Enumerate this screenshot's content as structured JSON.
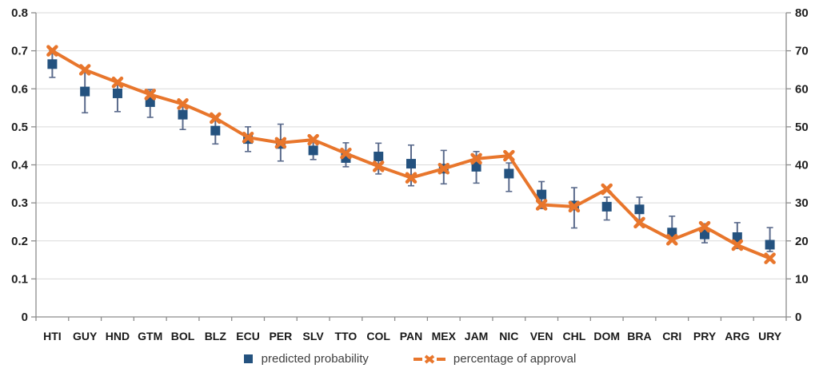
{
  "chart_data": {
    "type": "line",
    "title": "",
    "categories": [
      "HTI",
      "GUY",
      "HND",
      "GTM",
      "BOL",
      "BLZ",
      "ECU",
      "PER",
      "SLV",
      "TTO",
      "COL",
      "PAN",
      "MEX",
      "JAM",
      "NIC",
      "VEN",
      "CHL",
      "DOM",
      "BRA",
      "CRI",
      "PRY",
      "ARG",
      "URY"
    ],
    "series": [
      {
        "name": "predicted probability",
        "kind": "scatter-square-with-error-bars",
        "axis": "left",
        "color": "#24527F",
        "error_color": "#5B6B8C",
        "values": [
          0.665,
          0.593,
          0.588,
          0.565,
          0.532,
          0.49,
          0.468,
          0.455,
          0.438,
          0.418,
          0.422,
          0.403,
          0.39,
          0.395,
          0.377,
          0.322,
          0.293,
          0.29,
          0.283,
          0.222,
          0.217,
          0.21,
          0.19
        ],
        "error_low": [
          0.63,
          0.537,
          0.54,
          0.525,
          0.493,
          0.455,
          0.435,
          0.41,
          0.414,
          0.395,
          0.376,
          0.345,
          0.35,
          0.352,
          0.33,
          0.285,
          0.234,
          0.255,
          0.25,
          0.2,
          0.195,
          0.18,
          0.172
        ],
        "error_high": [
          0.7,
          0.648,
          0.61,
          0.598,
          0.563,
          0.523,
          0.5,
          0.507,
          0.462,
          0.458,
          0.457,
          0.452,
          0.438,
          0.435,
          0.405,
          0.356,
          0.34,
          0.315,
          0.315,
          0.265,
          0.245,
          0.248,
          0.235
        ]
      },
      {
        "name": "percentage of approval",
        "kind": "line-x-marker",
        "axis": "right",
        "color": "#E8762C",
        "values": [
          70,
          65,
          61.7,
          58.5,
          56,
          52.3,
          47.2,
          45.8,
          46.6,
          43,
          39.6,
          36.6,
          39,
          41.6,
          42.4,
          29.5,
          29,
          33.6,
          24.8,
          20.3,
          23.7,
          18.9,
          15.4
        ]
      }
    ],
    "left_axis": {
      "min": 0,
      "max": 0.8,
      "step": 0.1,
      "labels": [
        "0.8",
        "0.7",
        "0.6",
        "0.5",
        "0.4",
        "0.3",
        "0.2",
        "0.1",
        "0"
      ]
    },
    "right_axis": {
      "min": 0,
      "max": 80,
      "step": 10,
      "labels": [
        "80",
        "70",
        "60",
        "50",
        "40",
        "30",
        "20",
        "10",
        "0"
      ]
    },
    "gridlines": true,
    "legend_position": "bottom-center",
    "colors": {
      "grid": "#D9D9D9",
      "axis": "#8C8C8C",
      "tick_text": "#1f1f1f"
    }
  },
  "legend": {
    "items": [
      {
        "label": "predicted probability",
        "marker": "square",
        "color": "#24527F"
      },
      {
        "label": "percentage of approval",
        "marker": "line-x",
        "color": "#E8762C"
      }
    ]
  }
}
